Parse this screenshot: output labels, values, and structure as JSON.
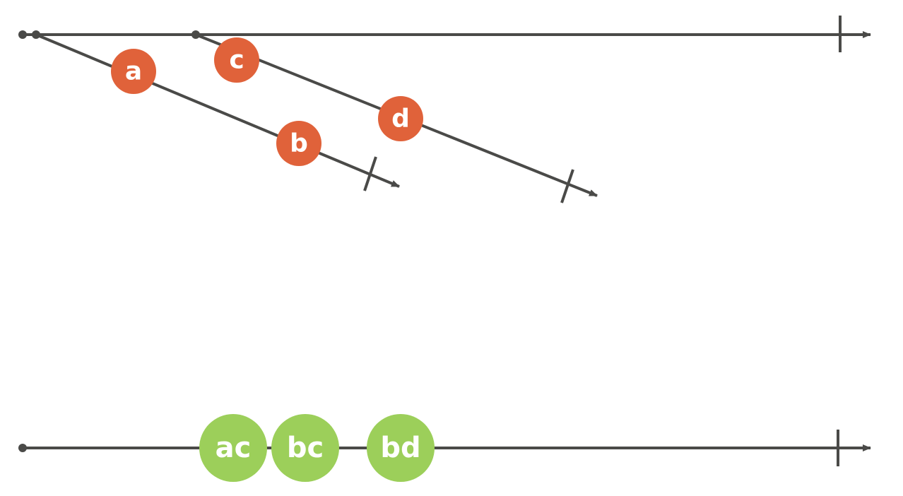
{
  "colors": {
    "line": "#4a4a48",
    "input_marble": "#e0623a",
    "output_marble": "#9ccf5a",
    "marble_text": "#ffffff"
  },
  "diagram": {
    "source_stream": {
      "completed": true
    },
    "inner_streams": [
      {
        "marbles": [
          "a",
          "b"
        ],
        "completed": true
      },
      {
        "marbles": [
          "c",
          "d"
        ],
        "completed": true
      }
    ],
    "result_stream": {
      "marbles": [
        "ac",
        "bc",
        "bd"
      ],
      "completed": true
    }
  }
}
